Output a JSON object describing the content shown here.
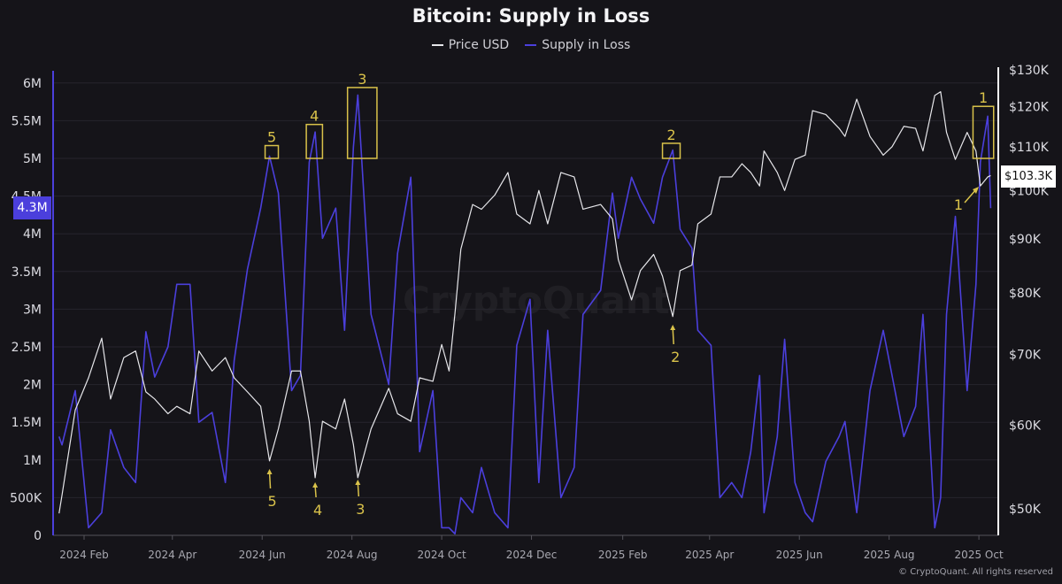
{
  "chart_data": {
    "type": "line",
    "title": "Bitcoin: Supply in Loss",
    "legend": {
      "placement": "top-center",
      "entries": [
        "Price USD",
        "Supply in Loss"
      ]
    },
    "colors": {
      "price": "#e6e6ea",
      "supply": "#4b3fdc",
      "annotation": "#d9c24a",
      "background": "#151419"
    },
    "grid": true,
    "watermark": "CryptoQuant",
    "copyright": "© CryptoQuant. All rights reserved",
    "y_left": {
      "label": "",
      "range": [
        0,
        6000000
      ],
      "ticks": [
        "0",
        "500K",
        "1M",
        "1.5M",
        "2M",
        "2.5M",
        "3M",
        "3.5M",
        "4M",
        "4.5M",
        "5M",
        "5.5M",
        "6M"
      ],
      "current_value_label": "4.3M"
    },
    "y_right": {
      "label": "",
      "scale": "log",
      "range": [
        50000,
        130000
      ],
      "ticks": [
        "$50K",
        "$60K",
        "$70K",
        "$80K",
        "$90K",
        "$100K",
        "$110K",
        "$120K",
        "$130K"
      ],
      "current_value_label": "$103.3K"
    },
    "x_ticks": [
      "2024 Feb",
      "2024 Apr",
      "2024 Jun",
      "2024 Aug",
      "2024 Oct",
      "2024 Dec",
      "2025 Feb",
      "2025 Apr",
      "2025 Jun",
      "2025 Aug",
      "2025 Oct"
    ],
    "x": [
      "2024-01-15",
      "2024-01-17",
      "2024-01-26",
      "2024-02-04",
      "2024-02-13",
      "2024-02-19",
      "2024-02-28",
      "2024-03-07",
      "2024-03-14",
      "2024-03-20",
      "2024-03-29",
      "2024-04-04",
      "2024-04-13",
      "2024-04-19",
      "2024-04-28",
      "2024-05-07",
      "2024-05-13",
      "2024-05-22",
      "2024-05-31",
      "2024-06-06",
      "2024-06-12",
      "2024-06-21",
      "2024-06-27",
      "2024-07-03",
      "2024-07-07",
      "2024-07-12",
      "2024-07-21",
      "2024-07-27",
      "2024-08-02",
      "2024-08-05",
      "2024-08-14",
      "2024-08-26",
      "2024-09-01",
      "2024-09-10",
      "2024-09-16",
      "2024-09-25",
      "2024-10-01",
      "2024-10-06",
      "2024-10-10",
      "2024-10-14",
      "2024-10-22",
      "2024-10-28",
      "2024-11-06",
      "2024-11-15",
      "2024-11-21",
      "2024-11-30",
      "2024-12-06",
      "2024-12-12",
      "2024-12-21",
      "2024-12-30",
      "2025-01-05",
      "2025-01-17",
      "2025-01-25",
      "2025-01-29",
      "2025-02-07",
      "2025-02-13",
      "2025-02-22",
      "2025-02-28",
      "2025-03-07",
      "2025-03-12",
      "2025-03-20",
      "2025-03-24",
      "2025-04-02",
      "2025-04-08",
      "2025-04-16",
      "2025-04-23",
      "2025-04-29",
      "2025-05-05",
      "2025-05-08",
      "2025-05-17",
      "2025-05-22",
      "2025-05-29",
      "2025-06-05",
      "2025-06-10",
      "2025-06-19",
      "2025-06-28",
      "2025-07-02",
      "2025-07-10",
      "2025-07-19",
      "2025-07-28",
      "2025-08-03",
      "2025-08-11",
      "2025-08-19",
      "2025-08-24",
      "2025-09-01",
      "2025-09-05",
      "2025-09-09",
      "2025-09-15",
      "2025-09-23",
      "2025-09-29",
      "2025-10-02",
      "2025-10-07",
      "2025-10-09"
    ],
    "series": [
      {
        "name": "Price USD",
        "axis": "right",
        "values": [
          49500,
          51500,
          62000,
          66500,
          72500,
          63500,
          69500,
          70500,
          64500,
          63500,
          61500,
          62500,
          61500,
          70500,
          67500,
          69500,
          66500,
          64500,
          62500,
          55500,
          59500,
          67500,
          67500,
          60500,
          53500,
          60500,
          59500,
          63500,
          57500,
          53500,
          59500,
          65000,
          61500,
          60500,
          66500,
          66000,
          71500,
          67500,
          76500,
          88000,
          97000,
          96000,
          99000,
          104000,
          95000,
          93000,
          100000,
          93000,
          104000,
          103000,
          96000,
          97000,
          94000,
          86000,
          78800,
          84000,
          87000,
          83000,
          76000,
          84000,
          85000,
          93000,
          95000,
          103000,
          103000,
          106000,
          104000,
          101000,
          109000,
          104000,
          100000,
          107000,
          108000,
          119000,
          118000,
          114500,
          112500,
          122000,
          112500,
          108000,
          110000,
          115000,
          114500,
          109000,
          123000,
          124000,
          113500,
          107000,
          113500,
          109000,
          101000,
          103000,
          103300
        ]
      },
      {
        "name": "Supply in Loss",
        "axis": "left",
        "values": [
          1310000,
          1200000,
          1920000,
          100000,
          300000,
          1400000,
          900000,
          700000,
          2700000,
          2100000,
          2500000,
          3330000,
          3330000,
          1500000,
          1630000,
          700000,
          2320000,
          3530000,
          4340000,
          5030000,
          4540000,
          1920000,
          2120000,
          4950000,
          5350000,
          3940000,
          4340000,
          2720000,
          5150000,
          5840000,
          2930000,
          2000000,
          3740000,
          4750000,
          1110000,
          1920000,
          100000,
          100000,
          20000,
          500000,
          300000,
          900000,
          300000,
          100000,
          2520000,
          3130000,
          700000,
          2720000,
          500000,
          900000,
          2930000,
          3250000,
          4540000,
          3940000,
          4750000,
          4460000,
          4140000,
          4750000,
          5110000,
          4060000,
          3810000,
          2720000,
          2520000,
          500000,
          700000,
          500000,
          1110000,
          2120000,
          300000,
          1310000,
          2600000,
          700000,
          300000,
          180000,
          980000,
          1310000,
          1510000,
          300000,
          1920000,
          2720000,
          2120000,
          1310000,
          1710000,
          2930000,
          100000,
          500000,
          2930000,
          4230000,
          1920000,
          3330000,
          4950000,
          5560000,
          4340000
        ]
      }
    ],
    "annotations": {
      "supply_peaks": [
        {
          "label": "5",
          "date_range": [
            "2024-06-03",
            "2024-06-12"
          ],
          "value_range": [
            5000000,
            5170000
          ]
        },
        {
          "label": "4",
          "date_range": [
            "2024-07-01",
            "2024-07-12"
          ],
          "value_range": [
            5000000,
            5450000
          ]
        },
        {
          "label": "3",
          "date_range": [
            "2024-07-29",
            "2024-08-18"
          ],
          "value_range": [
            5000000,
            5940000
          ]
        },
        {
          "label": "2",
          "date_range": [
            "2025-02-28",
            "2025-03-12"
          ],
          "value_range": [
            5000000,
            5200000
          ]
        },
        {
          "label": "1",
          "date_range": [
            "2025-09-27",
            "2025-10-11"
          ],
          "value_range": [
            5000000,
            5690000
          ]
        }
      ],
      "price_arrows": [
        {
          "label": "5",
          "date": "2024-06-06"
        },
        {
          "label": "4",
          "date": "2024-07-07"
        },
        {
          "label": "3",
          "date": "2024-08-05"
        },
        {
          "label": "2",
          "date": "2025-03-07"
        },
        {
          "label": "1",
          "date": "2025-09-30"
        }
      ]
    }
  }
}
